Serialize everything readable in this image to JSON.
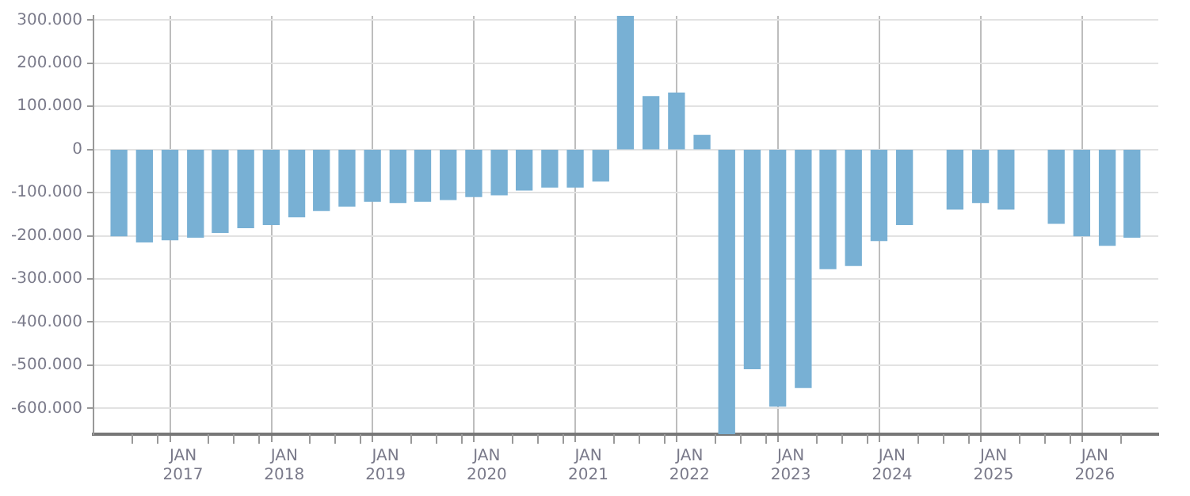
{
  "chart_data": {
    "type": "bar",
    "color": "#78b0d4",
    "x": [
      "2016-05-15",
      "2016-08-15",
      "2016-11-15",
      "2017-02-15",
      "2017-05-15",
      "2017-08-15",
      "2017-11-15",
      "2018-02-15",
      "2018-05-15",
      "2018-08-15",
      "2018-11-15",
      "2019-02-15",
      "2019-05-15",
      "2019-08-15",
      "2019-11-15",
      "2020-02-15",
      "2020-05-15",
      "2020-08-15",
      "2020-11-15",
      "2021-02-15",
      "2021-05-15",
      "2021-08-15",
      "2021-11-15",
      "2022-02-15",
      "2022-05-15",
      "2022-08-15",
      "2022-11-15",
      "2023-02-15",
      "2023-05-15",
      "2023-08-15",
      "2023-11-15",
      "2024-02-15",
      "2024-05-15",
      "2024-08-15",
      "2024-11-15",
      "2025-02-15",
      "2025-05-15",
      "2025-08-15",
      "2025-11-15",
      "2026-02-15",
      "2026-05-15"
    ],
    "values": [
      -200000,
      -214000,
      -209000,
      -203000,
      -192000,
      -181000,
      -174000,
      -156000,
      -141000,
      -131000,
      -120000,
      -123000,
      -120000,
      -116000,
      -109000,
      -105000,
      -94000,
      -87000,
      -87000,
      -73000,
      310000,
      123000,
      131000,
      33000,
      -660000,
      -508000,
      -595000,
      -552000,
      -276000,
      -269000,
      -211000,
      -174000,
      null,
      -138000,
      -123000,
      -138000,
      null,
      -171000,
      -200000,
      -222000,
      -203000
    ],
    "xlim": [
      "2016-04-01",
      "2026-07-01"
    ],
    "xticks": [
      {
        "value": "2016-07-01",
        "label": null
      },
      {
        "value": "2016-10-01",
        "label": null
      },
      {
        "value": "2017-01-01",
        "label": "JAN 2017"
      },
      {
        "value": "2017-04-01",
        "label": null
      },
      {
        "value": "2017-07-01",
        "label": null
      },
      {
        "value": "2017-10-01",
        "label": null
      },
      {
        "value": "2018-01-01",
        "label": "JAN 2018"
      },
      {
        "value": "2018-04-01",
        "label": null
      },
      {
        "value": "2018-07-01",
        "label": null
      },
      {
        "value": "2018-10-01",
        "label": null
      },
      {
        "value": "2019-01-01",
        "label": "JAN 2019"
      },
      {
        "value": "2019-04-01",
        "label": null
      },
      {
        "value": "2019-07-01",
        "label": null
      },
      {
        "value": "2019-10-01",
        "label": null
      },
      {
        "value": "2020-01-01",
        "label": "JAN 2020"
      },
      {
        "value": "2020-04-01",
        "label": null
      },
      {
        "value": "2020-07-01",
        "label": null
      },
      {
        "value": "2020-10-01",
        "label": null
      },
      {
        "value": "2021-01-01",
        "label": "JAN 2021"
      },
      {
        "value": "2021-04-01",
        "label": null
      },
      {
        "value": "2021-07-01",
        "label": null
      },
      {
        "value": "2021-10-01",
        "label": null
      },
      {
        "value": "2022-01-01",
        "label": "JAN 2022"
      },
      {
        "value": "2022-04-01",
        "label": null
      },
      {
        "value": "2022-07-01",
        "label": null
      },
      {
        "value": "2022-10-01",
        "label": null
      },
      {
        "value": "2023-01-01",
        "label": "JAN 2023"
      },
      {
        "value": "2023-04-01",
        "label": null
      },
      {
        "value": "2023-07-01",
        "label": null
      },
      {
        "value": "2023-10-01",
        "label": null
      },
      {
        "value": "2024-01-01",
        "label": "JAN 2024"
      },
      {
        "value": "2024-04-01",
        "label": null
      },
      {
        "value": "2024-07-01",
        "label": null
      },
      {
        "value": "2024-10-01",
        "label": null
      },
      {
        "value": "2025-01-01",
        "label": "JAN 2025"
      },
      {
        "value": "2025-04-01",
        "label": null
      },
      {
        "value": "2025-07-01",
        "label": null
      },
      {
        "value": "2025-10-01",
        "label": null
      },
      {
        "value": "2026-01-01",
        "label": "JAN 2026"
      },
      {
        "value": "2026-04-01",
        "label": null
      }
    ],
    "ylim": [
      -660000,
      310000
    ],
    "yticks": [
      {
        "value": -600000,
        "label": "-600.000"
      },
      {
        "value": -500000,
        "label": "-500.000"
      },
      {
        "value": -400000,
        "label": "-400.000"
      },
      {
        "value": -300000,
        "label": "-300.000"
      },
      {
        "value": -200000,
        "label": "-200.000"
      },
      {
        "value": -100000,
        "label": "-100.000"
      },
      0,
      {
        "value": 100000,
        "label": "100.000"
      },
      {
        "value": 200000,
        "label": "200.000"
      },
      {
        "value": 300000,
        "label": "300.000"
      }
    ],
    "grid": true,
    "legend": false
  }
}
